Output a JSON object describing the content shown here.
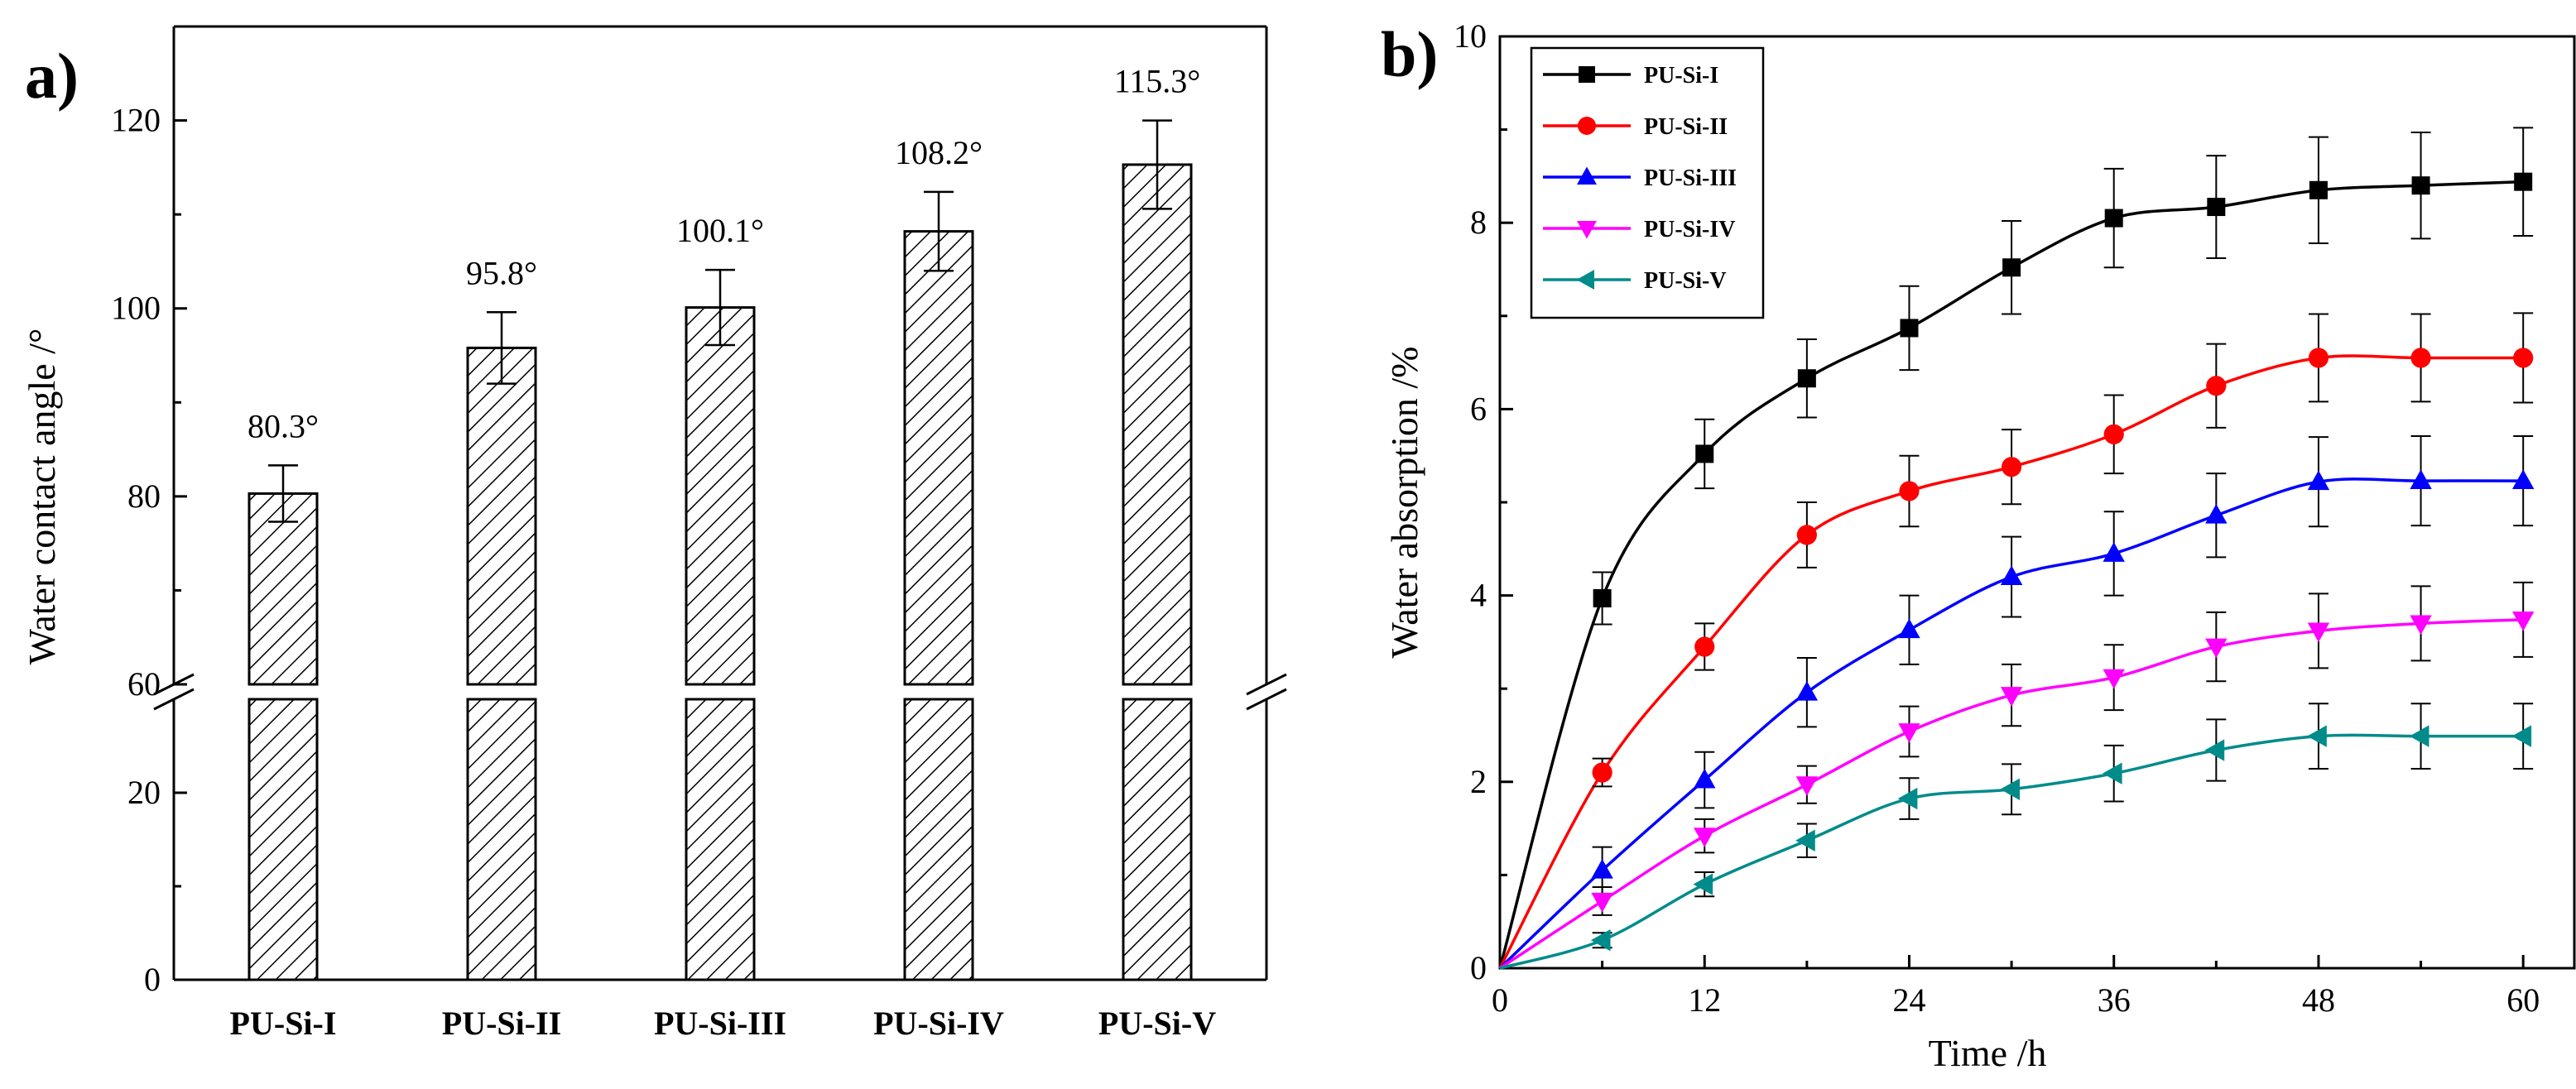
{
  "chart_data": [
    {
      "panel_label": "a)",
      "type": "bar",
      "title": "",
      "xlabel": "",
      "ylabel": "Water contact angle /°",
      "categories": [
        "PU-Si-I",
        "PU-Si-II",
        "PU-Si-III",
        "PU-Si-IV",
        "PU-Si-V"
      ],
      "values": [
        80.3,
        95.8,
        100.1,
        108.2,
        115.3
      ],
      "errors": [
        3.0,
        3.8,
        4.0,
        4.2,
        4.7
      ],
      "value_labels": [
        "80.3°",
        "95.8°",
        "100.1°",
        "108.2°",
        "115.3°"
      ],
      "y_axis_break": {
        "lower_range": [
          0,
          30
        ],
        "upper_range": [
          60,
          130
        ]
      },
      "lower_ticks": [
        0,
        20
      ],
      "upper_ticks": [
        60,
        80,
        100,
        120
      ],
      "tick_labels": {
        "0": "0",
        "20": "20",
        "60": "60",
        "80": "80",
        "100": "100",
        "120": "120"
      },
      "bar_fill": "hatched",
      "grid": false
    },
    {
      "panel_label": "b)",
      "type": "line",
      "title": "",
      "xlabel": "Time /h",
      "ylabel": "Water absorption /%",
      "xlim": [
        0,
        63
      ],
      "ylim": [
        0,
        10
      ],
      "xticks": [
        0,
        12,
        24,
        36,
        48,
        60
      ],
      "yticks": [
        0,
        2,
        4,
        6,
        8,
        10
      ],
      "x": [
        0,
        6,
        12,
        18,
        24,
        30,
        36,
        42,
        48,
        54,
        60
      ],
      "series": [
        {
          "name": "PU-Si-I",
          "color": "#000000",
          "marker": "square",
          "values": [
            0,
            3.97,
            5.52,
            6.33,
            6.87,
            7.52,
            8.05,
            8.17,
            8.35,
            8.4,
            8.44
          ],
          "errors": [
            0,
            0.28,
            0.37,
            0.42,
            0.45,
            0.5,
            0.53,
            0.55,
            0.57,
            0.57,
            0.58
          ]
        },
        {
          "name": "PU-Si-II",
          "color": "#ff0000",
          "marker": "circle",
          "values": [
            0,
            2.1,
            3.45,
            4.65,
            5.12,
            5.38,
            5.73,
            6.25,
            6.55,
            6.55,
            6.55
          ],
          "errors": [
            0,
            0.15,
            0.25,
            0.35,
            0.38,
            0.4,
            0.42,
            0.45,
            0.47,
            0.47,
            0.48
          ]
        },
        {
          "name": "PU-Si-III",
          "color": "#0000ff",
          "marker": "triangle-up",
          "values": [
            0,
            1.05,
            2.02,
            2.96,
            3.63,
            4.2,
            4.45,
            4.86,
            5.22,
            5.23,
            5.23
          ],
          "errors": [
            0,
            0.25,
            0.3,
            0.37,
            0.37,
            0.43,
            0.45,
            0.45,
            0.48,
            0.48,
            0.48
          ]
        },
        {
          "name": "PU-Si-IV",
          "color": "#ff00ff",
          "marker": "triangle-down",
          "values": [
            0,
            0.72,
            1.42,
            1.97,
            2.54,
            2.93,
            3.12,
            3.45,
            3.62,
            3.7,
            3.74
          ],
          "errors": [
            0,
            0.15,
            0.18,
            0.2,
            0.27,
            0.33,
            0.35,
            0.37,
            0.4,
            0.4,
            0.4
          ]
        },
        {
          "name": "PU-Si-V",
          "color": "#008b8b",
          "marker": "triangle-left",
          "values": [
            0,
            0.3,
            0.9,
            1.37,
            1.82,
            1.92,
            2.09,
            2.34,
            2.49,
            2.49,
            2.49
          ],
          "errors": [
            0,
            0.08,
            0.13,
            0.18,
            0.22,
            0.27,
            0.3,
            0.33,
            0.35,
            0.35,
            0.35
          ]
        }
      ],
      "legend_position": "top-left",
      "grid": false
    }
  ]
}
